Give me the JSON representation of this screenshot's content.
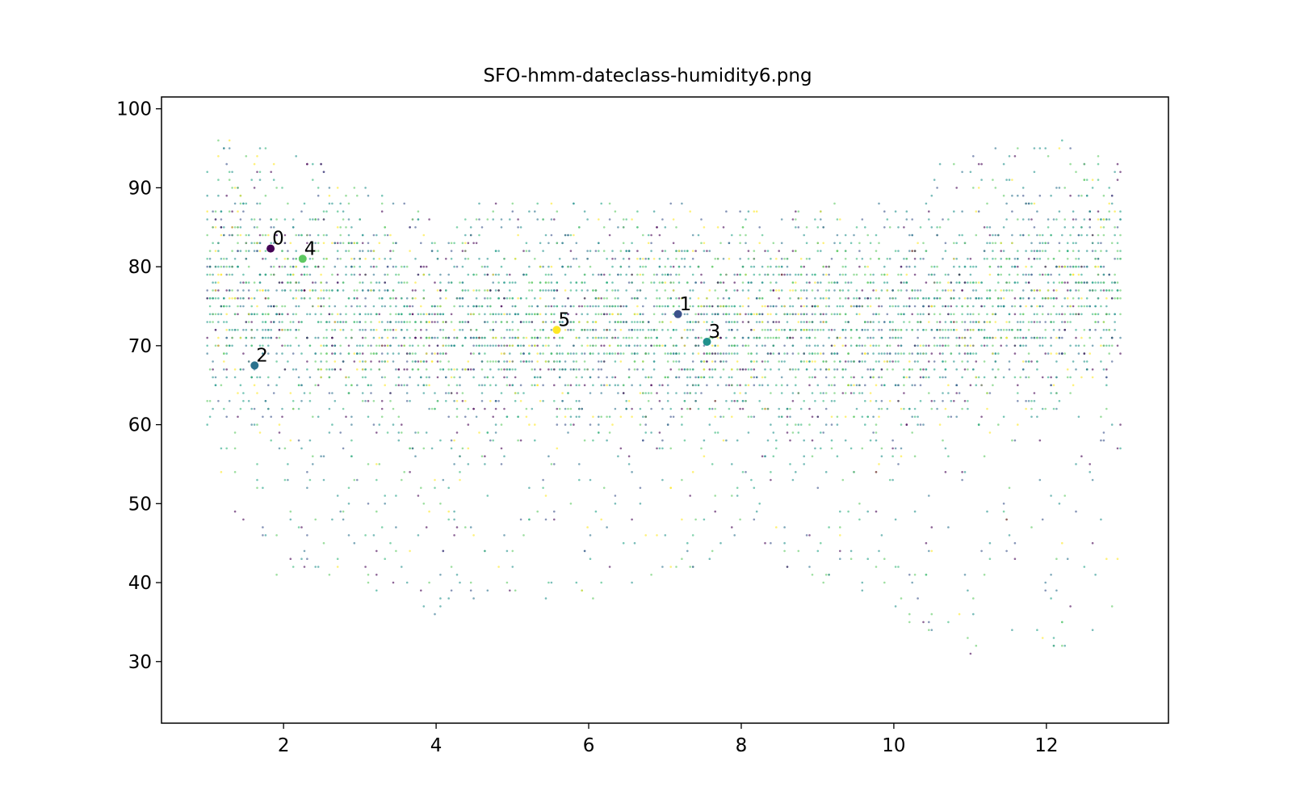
{
  "chart_data": {
    "type": "scatter",
    "title": "SFO-hmm-dateclass-humidity6.png",
    "xlabel": "",
    "ylabel": "",
    "xlim": [
      0.4,
      13.6
    ],
    "ylim": [
      22.2,
      101.5
    ],
    "xticks": [
      2,
      4,
      6,
      8,
      10,
      12
    ],
    "yticks": [
      30,
      40,
      50,
      60,
      70,
      80,
      90,
      100
    ],
    "grid": false,
    "legend": "none",
    "colormap": "viridis",
    "class_colors": [
      "#440154",
      "#3b528b",
      "#21918c",
      "#1fa187",
      "#5ec962",
      "#fde725"
    ],
    "background_points": {
      "x_range": [
        1.0,
        12.97
      ],
      "envelope": [
        {
          "x": 1.0,
          "low": 55,
          "high": 97
        },
        {
          "x": 2.0,
          "low": 38,
          "high": 95
        },
        {
          "x": 3.0,
          "low": 40,
          "high": 92
        },
        {
          "x": 4.0,
          "low": 35,
          "high": 88
        },
        {
          "x": 5.0,
          "low": 38,
          "high": 88
        },
        {
          "x": 6.0,
          "low": 37,
          "high": 88
        },
        {
          "x": 7.0,
          "low": 40,
          "high": 88
        },
        {
          "x": 8.0,
          "low": 45,
          "high": 88
        },
        {
          "x": 9.0,
          "low": 40,
          "high": 88
        },
        {
          "x": 10.0,
          "low": 34,
          "high": 90
        },
        {
          "x": 11.0,
          "low": 30,
          "high": 95
        },
        {
          "x": 12.0,
          "low": 30,
          "high": 97
        },
        {
          "x": 12.97,
          "low": 35,
          "high": 97
        }
      ],
      "center": [
        {
          "x": 1.0,
          "y": 78
        },
        {
          "x": 2.0,
          "y": 76
        },
        {
          "x": 4.0,
          "y": 72
        },
        {
          "x": 6.0,
          "y": 72
        },
        {
          "x": 8.0,
          "y": 72
        },
        {
          "x": 10.0,
          "y": 72
        },
        {
          "x": 12.0,
          "y": 76
        },
        {
          "x": 12.97,
          "y": 78
        }
      ]
    },
    "class_centers": [
      {
        "label": "0",
        "x": 1.83,
        "y": 82.3,
        "color": "#440154"
      },
      {
        "label": "1",
        "x": 7.17,
        "y": 74.0,
        "color": "#3b528b"
      },
      {
        "label": "2",
        "x": 1.62,
        "y": 67.5,
        "color": "#2c728e"
      },
      {
        "label": "3",
        "x": 7.55,
        "y": 70.5,
        "color": "#21918c"
      },
      {
        "label": "4",
        "x": 2.25,
        "y": 81.0,
        "color": "#5ec962"
      },
      {
        "label": "5",
        "x": 5.58,
        "y": 72.0,
        "color": "#fde725"
      }
    ]
  }
}
